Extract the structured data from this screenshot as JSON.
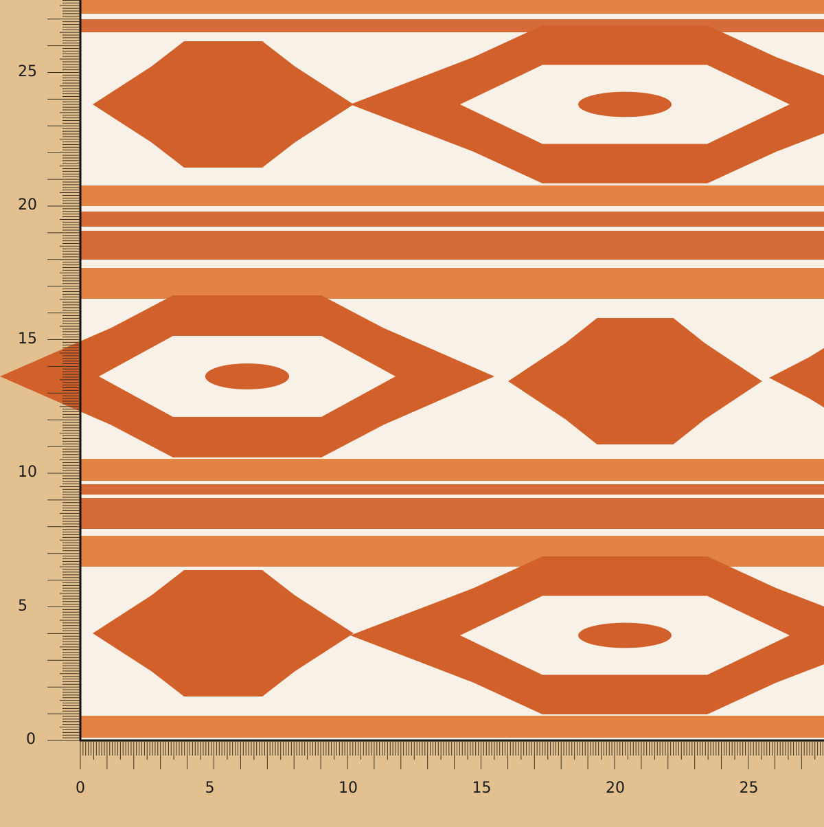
{
  "ruler": {
    "x_labels": [
      "0",
      "5",
      "10",
      "15",
      "20",
      "25"
    ],
    "y_labels": [
      "0",
      "5",
      "10",
      "15",
      "20",
      "25"
    ]
  },
  "colors": {
    "background": "#e3c08f",
    "fabric_base": "#f8f1e8",
    "motif_orange": "#d2602a",
    "stripe_orange": "#e07a35",
    "ruler_ink": "#3a3020"
  }
}
